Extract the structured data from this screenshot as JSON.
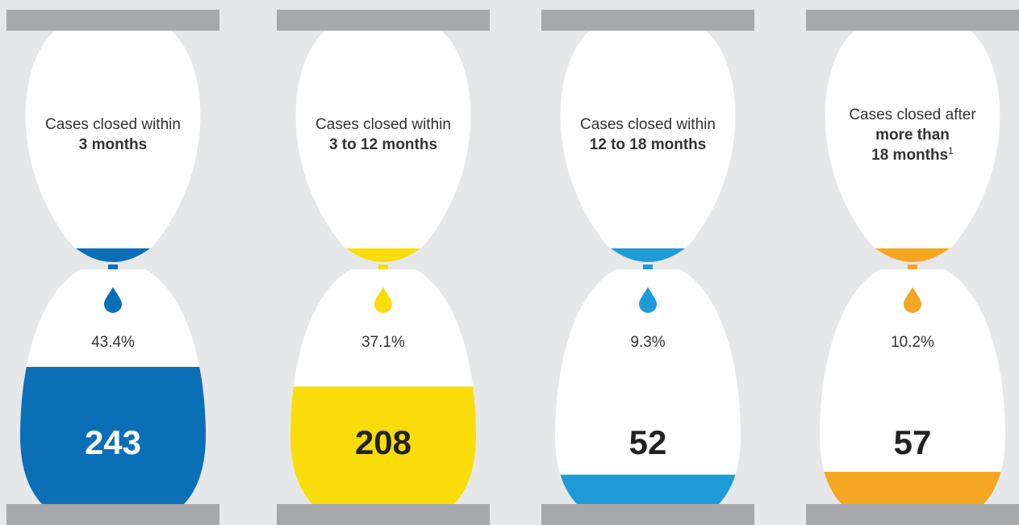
{
  "hourglasses": [
    {
      "label": "Cases closed within",
      "emphasis": [
        "3 months"
      ],
      "percent": "43.4%",
      "count": 243,
      "color": "#0b6fb7",
      "count_color": "#ffffff"
    },
    {
      "label": "Cases closed within",
      "emphasis": [
        "3 to 12 months"
      ],
      "percent": "37.1%",
      "count": 208,
      "color": "#fadc0a",
      "count_color": "#222222"
    },
    {
      "label": "Cases closed within",
      "emphasis": [
        "12 to 18 months"
      ],
      "percent": "9.3%",
      "count": 52,
      "color": "#1f9bd8",
      "count_color": "#222222"
    },
    {
      "label": "Cases closed after",
      "emphasis": [
        "more than",
        "18 months"
      ],
      "footnote": "1",
      "percent": "10.2%",
      "count": 57,
      "color": "#f5a623",
      "count_color": "#222222"
    }
  ]
}
